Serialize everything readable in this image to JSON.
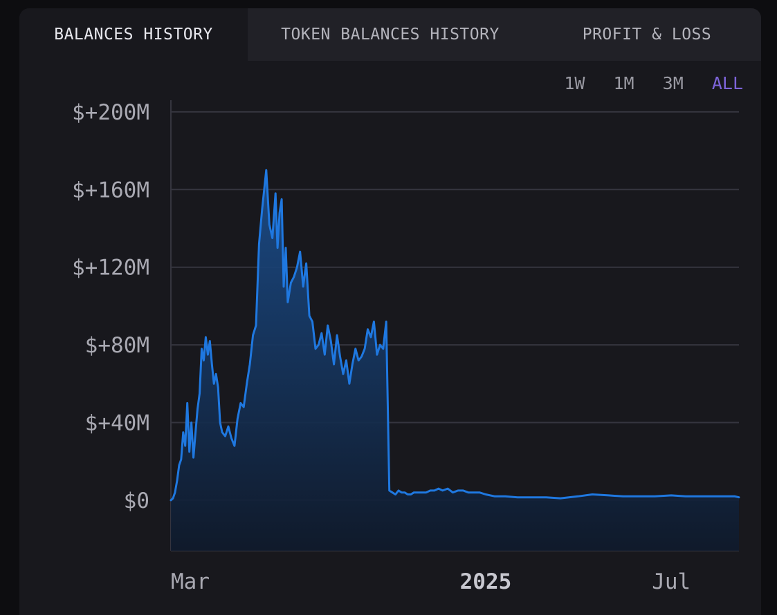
{
  "tabs": [
    {
      "label": "BALANCES HISTORY",
      "active": true
    },
    {
      "label": "TOKEN BALANCES HISTORY",
      "active": false
    },
    {
      "label": "PROFIT & LOSS",
      "active": false
    }
  ],
  "ranges": [
    {
      "label": "1W",
      "selected": false
    },
    {
      "label": "1M",
      "selected": false
    },
    {
      "label": "3M",
      "selected": false
    },
    {
      "label": "ALL",
      "selected": true
    }
  ],
  "colors": {
    "line": "#1f78e0",
    "fill_top": "#1b4f8f",
    "fill_bottom": "#0f1a2c",
    "grid": "#35353f",
    "accent": "#7d64d9"
  },
  "chart_data": {
    "type": "area",
    "ylim": [
      -26,
      206
    ],
    "yticks": [
      {
        "value": 0,
        "label": "$0"
      },
      {
        "value": 40,
        "label": "$+40M"
      },
      {
        "value": 80,
        "label": "$+80M"
      },
      {
        "value": 120,
        "label": "$+120M"
      },
      {
        "value": 160,
        "label": "$+160M"
      },
      {
        "value": 200,
        "label": "$+200M"
      }
    ],
    "xlim": [
      "2024-02-29",
      "2025-09-05"
    ],
    "xticks": [
      {
        "date": "2024-03-01",
        "label": "Mar",
        "major": false
      },
      {
        "date": "2025-01-01",
        "label": "2025",
        "major": true
      },
      {
        "date": "2025-07-01",
        "label": "Jul",
        "major": false
      }
    ],
    "grid": true,
    "x": [
      "2024-02-29",
      "2024-03-02",
      "2024-03-04",
      "2024-03-06",
      "2024-03-08",
      "2024-03-10",
      "2024-03-12",
      "2024-03-14",
      "2024-03-16",
      "2024-03-18",
      "2024-03-20",
      "2024-03-22",
      "2024-03-24",
      "2024-03-26",
      "2024-03-28",
      "2024-03-30",
      "2024-04-01",
      "2024-04-03",
      "2024-04-05",
      "2024-04-07",
      "2024-04-09",
      "2024-04-11",
      "2024-04-13",
      "2024-04-15",
      "2024-04-17",
      "2024-04-19",
      "2024-04-22",
      "2024-04-25",
      "2024-04-28",
      "2024-05-01",
      "2024-05-04",
      "2024-05-07",
      "2024-05-10",
      "2024-05-13",
      "2024-05-16",
      "2024-05-19",
      "2024-05-22",
      "2024-05-25",
      "2024-05-28",
      "2024-06-01",
      "2024-06-04",
      "2024-06-07",
      "2024-06-10",
      "2024-06-12",
      "2024-06-14",
      "2024-06-16",
      "2024-06-18",
      "2024-06-20",
      "2024-06-22",
      "2024-06-25",
      "2024-06-28",
      "2024-07-01",
      "2024-07-04",
      "2024-07-07",
      "2024-07-10",
      "2024-07-13",
      "2024-07-16",
      "2024-07-19",
      "2024-07-22",
      "2024-07-25",
      "2024-07-28",
      "2024-07-31",
      "2024-08-03",
      "2024-08-06",
      "2024-08-09",
      "2024-08-12",
      "2024-08-15",
      "2024-08-18",
      "2024-08-21",
      "2024-08-24",
      "2024-08-27",
      "2024-08-30",
      "2024-09-02",
      "2024-09-05",
      "2024-09-08",
      "2024-09-11",
      "2024-09-14",
      "2024-09-17",
      "2024-09-20",
      "2024-09-23",
      "2024-09-26",
      "2024-09-29",
      "2024-10-02",
      "2024-10-05",
      "2024-10-08",
      "2024-10-11",
      "2024-10-14",
      "2024-10-17",
      "2024-10-20",
      "2024-10-23",
      "2024-10-26",
      "2024-10-29",
      "2024-11-01",
      "2024-11-04",
      "2024-11-08",
      "2024-11-12",
      "2024-11-16",
      "2024-11-20",
      "2024-11-25",
      "2024-11-30",
      "2024-12-05",
      "2024-12-10",
      "2024-12-15",
      "2024-12-20",
      "2024-12-26",
      "2025-01-01",
      "2025-01-10",
      "2025-01-20",
      "2025-02-01",
      "2025-02-15",
      "2025-03-01",
      "2025-03-15",
      "2025-04-01",
      "2025-04-15",
      "2025-05-01",
      "2025-05-15",
      "2025-06-01",
      "2025-06-15",
      "2025-07-01",
      "2025-07-15",
      "2025-08-01",
      "2025-08-15",
      "2025-09-01",
      "2025-09-05"
    ],
    "values": [
      0,
      1,
      4,
      10,
      18,
      21,
      35,
      28,
      50,
      25,
      40,
      22,
      35,
      47,
      55,
      78,
      72,
      84,
      75,
      82,
      70,
      60,
      65,
      58,
      40,
      35,
      33,
      38,
      32,
      28,
      42,
      50,
      48,
      60,
      70,
      85,
      90,
      132,
      150,
      170,
      142,
      135,
      158,
      130,
      148,
      155,
      110,
      130,
      102,
      112,
      115,
      120,
      128,
      110,
      122,
      95,
      92,
      78,
      80,
      86,
      75,
      90,
      82,
      70,
      85,
      74,
      65,
      72,
      60,
      70,
      78,
      72,
      74,
      78,
      88,
      84,
      92,
      75,
      80,
      78,
      92,
      5,
      4,
      3,
      5,
      4,
      4,
      3,
      3,
      4,
      4,
      4,
      4,
      4,
      5,
      5,
      6,
      5,
      6,
      4,
      5,
      5,
      4,
      4,
      4,
      3,
      2,
      2,
      1.5,
      1.5,
      1.5,
      1,
      2,
      3,
      2.5,
      2,
      2,
      2,
      2.5,
      2,
      2,
      2,
      2,
      1.5
    ]
  }
}
